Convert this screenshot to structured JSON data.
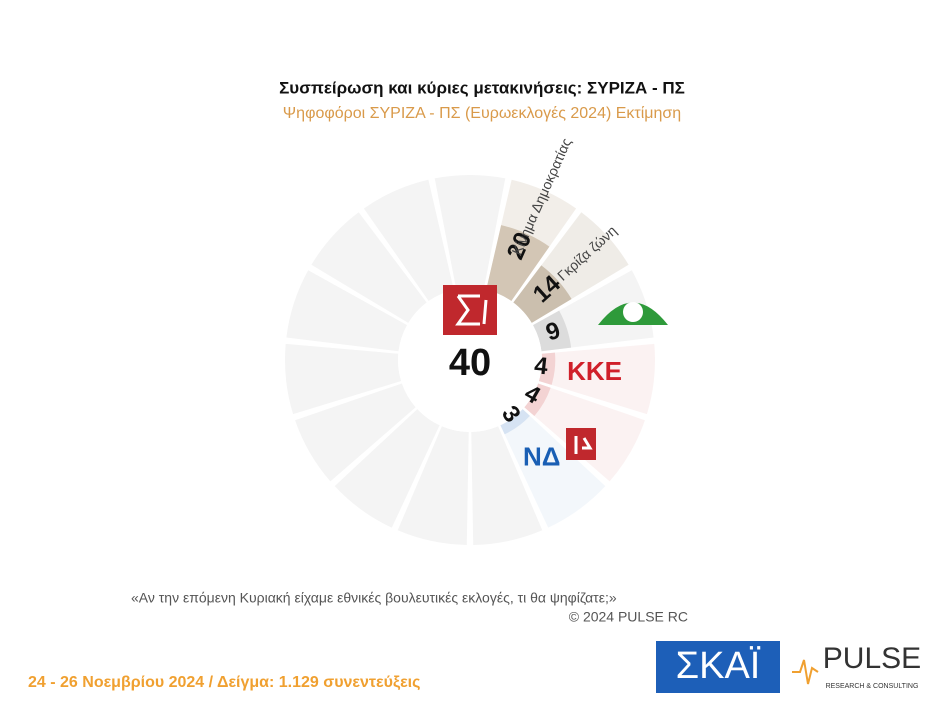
{
  "chart_data": {
    "type": "radial-bar",
    "title": "Συσπείρωση και κύριες μετακινήσεις:  ΣΥΡΙΖΑ - ΠΣ",
    "subtitle": "Ψηφοφόροι ΣΥΡΙΖΑ - ΠΣ  (Ευρωεκλογές 2024)  Εκτίμηση",
    "center_value": 40,
    "categories": [
      "Κίνημα Δημοκρατίας",
      "Γκρίζα ζώνη",
      null,
      "ΚΚΕ",
      null,
      "ΝΔ"
    ],
    "values": [
      20,
      14,
      9,
      4,
      4,
      3
    ],
    "colors": [
      "#d3c6b5",
      "#cbbfae",
      "#dcdcdc",
      "#f3d3d3",
      "#f3d3d3",
      "#d6e3f3"
    ],
    "ylim": [
      0,
      25
    ],
    "question": "«Αν την επόμενη Κυριακή είχαμε εθνικές βουλευτικές εκλογές, τι θα ψηφίζατε;»",
    "copyright": "©  2024  PULSE RC",
    "footer": "24 - 26 Νοεμβρίου 2024  /  Δείγμα:  1.129 συνεντεύξεις",
    "logos": {
      "skai": "ΣΚΑΪ",
      "pulse": "PULSE",
      "pulse_sub": "RESEARCH & CONSULTING"
    }
  }
}
